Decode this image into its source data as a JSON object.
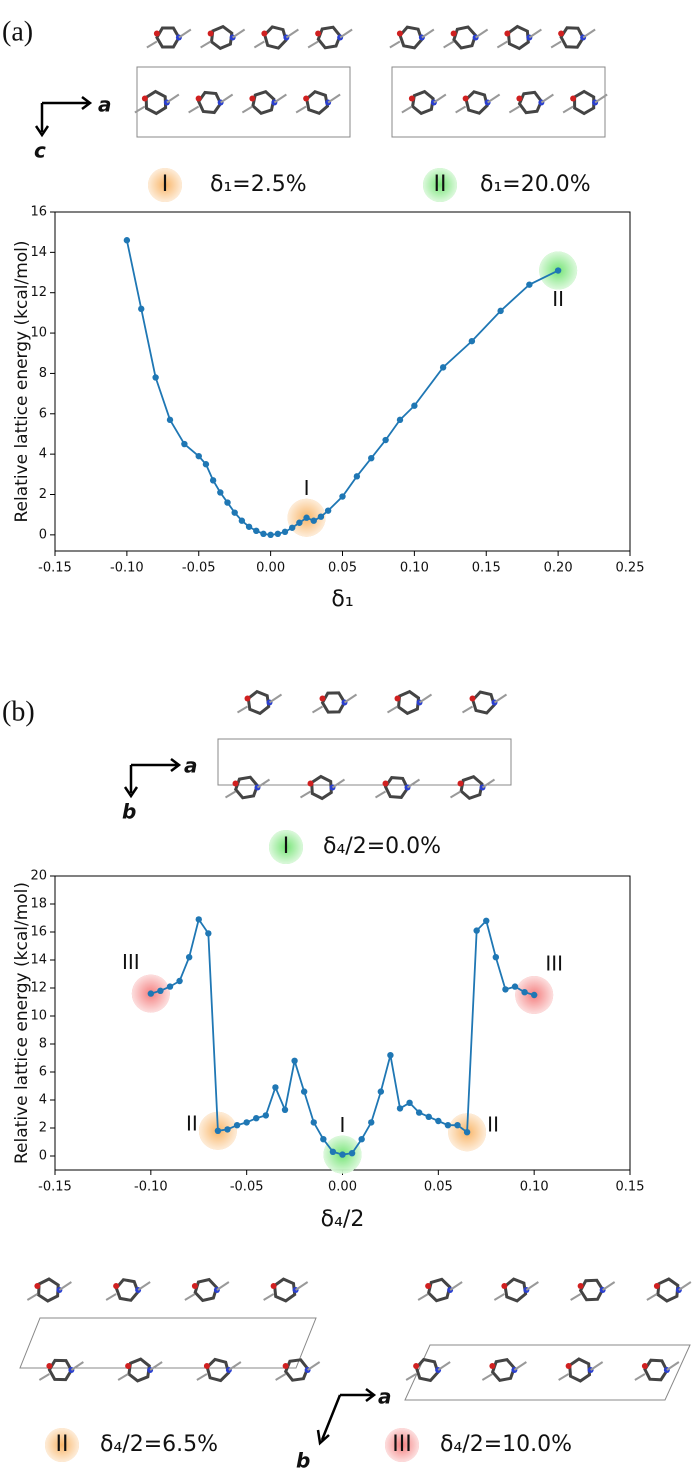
{
  "figure": {
    "panel_a": {
      "label": "(a)",
      "axes": [
        "a",
        "c"
      ],
      "structures": [
        {
          "marker": "I",
          "color": "#f8a94f",
          "caption": "δ₁=2.5%"
        },
        {
          "marker": "II",
          "color": "#5fe05f",
          "caption": "δ₁=20.0%"
        }
      ]
    },
    "panel_b": {
      "label": "(b)",
      "axes": [
        "a",
        "b"
      ],
      "structures_top": [
        {
          "marker": "I",
          "color": "#5fe05f",
          "caption": "δ₄/2=0.0%"
        }
      ],
      "structures_bottom": [
        {
          "marker": "II",
          "color": "#f8a94f",
          "caption": "δ₄/2=6.5%"
        },
        {
          "marker": "III",
          "color": "#f26a6a",
          "caption": "δ₄/2=10.0%"
        }
      ]
    }
  },
  "chart_data": [
    {
      "type": "line",
      "x_label": "δ₁",
      "y_label": "Relative lattice energy (kcal/mol)",
      "color": "#1f77b4",
      "x": [
        -0.1,
        -0.09,
        -0.08,
        -0.07,
        -0.06,
        -0.05,
        -0.045,
        -0.04,
        -0.035,
        -0.03,
        -0.025,
        -0.02,
        -0.015,
        -0.01,
        -0.005,
        0,
        0.005,
        0.01,
        0.015,
        0.02,
        0.025,
        0.03,
        0.035,
        0.04,
        0.05,
        0.06,
        0.07,
        0.08,
        0.09,
        0.1,
        0.12,
        0.14,
        0.16,
        0.18,
        0.2
      ],
      "values": [
        14.6,
        11.2,
        7.8,
        5.7,
        4.5,
        3.9,
        3.5,
        2.7,
        2.1,
        1.6,
        1.1,
        0.7,
        0.4,
        0.2,
        0.05,
        0,
        0.05,
        0.15,
        0.35,
        0.6,
        0.85,
        0.7,
        0.9,
        1.2,
        1.9,
        2.9,
        3.8,
        4.7,
        5.7,
        6.4,
        8.3,
        9.6,
        11.1,
        12.4,
        13.1
      ],
      "xlim": [
        -0.15,
        0.25
      ],
      "xticks": [
        {
          "value": -0.15,
          "label": "-0.15"
        },
        {
          "value": -0.1,
          "label": "-0.10"
        },
        {
          "value": -0.05,
          "label": "-0.05"
        },
        {
          "value": 0,
          "label": "0.00"
        },
        {
          "value": 0.05,
          "label": "0.05"
        },
        {
          "value": 0.1,
          "label": "0.10"
        },
        {
          "value": 0.15,
          "label": "0.15"
        },
        {
          "value": 0.2,
          "label": "0.20"
        },
        {
          "value": 0.25,
          "label": "0.25"
        }
      ],
      "ylim": [
        -0.8,
        16
      ],
      "yticks": [
        0,
        2,
        4,
        6,
        8,
        10,
        12,
        14,
        16
      ],
      "highlights": [
        {
          "label": "I",
          "x": 0.025,
          "y": 0.85,
          "color": "#f8a94f"
        },
        {
          "label": "II",
          "x": 0.2,
          "y": 13.1,
          "color": "#5fe05f"
        }
      ]
    },
    {
      "type": "line",
      "x_label": "δ₄/2",
      "y_label": "Relative lattice energy (kcal/mol)",
      "color": "#1f77b4",
      "x": [
        -0.1,
        -0.095,
        -0.09,
        -0.085,
        -0.08,
        -0.075,
        -0.07,
        -0.065,
        -0.06,
        -0.055,
        -0.05,
        -0.045,
        -0.04,
        -0.035,
        -0.03,
        -0.025,
        -0.02,
        -0.015,
        -0.01,
        -0.005,
        0,
        0.005,
        0.01,
        0.015,
        0.02,
        0.025,
        0.03,
        0.035,
        0.04,
        0.045,
        0.05,
        0.055,
        0.06,
        0.065,
        0.07,
        0.075,
        0.08,
        0.085,
        0.09,
        0.095,
        0.1
      ],
      "values": [
        11.6,
        11.8,
        12.1,
        12.5,
        14.2,
        16.9,
        15.9,
        1.8,
        1.9,
        2.2,
        2.4,
        2.7,
        2.9,
        4.9,
        3.3,
        6.8,
        4.6,
        2.4,
        1.2,
        0.3,
        0.1,
        0.2,
        1.2,
        2.4,
        4.6,
        7.2,
        3.4,
        3.8,
        3.1,
        2.8,
        2.5,
        2.2,
        2.2,
        1.7,
        16.1,
        16.8,
        14.2,
        11.9,
        12.1,
        11.7,
        11.5
      ],
      "xlim": [
        -0.15,
        0.15
      ],
      "xticks": [
        {
          "value": -0.15,
          "label": "-0.15"
        },
        {
          "value": -0.1,
          "label": "-0.10"
        },
        {
          "value": -0.05,
          "label": "-0.05"
        },
        {
          "value": 0,
          "label": "0.00"
        },
        {
          "value": 0.05,
          "label": "0.05"
        },
        {
          "value": 0.1,
          "label": "0.10"
        },
        {
          "value": 0.15,
          "label": "0.15"
        }
      ],
      "ylim": [
        -1,
        20
      ],
      "yticks": [
        0,
        2,
        4,
        6,
        8,
        10,
        12,
        14,
        16,
        18,
        20
      ],
      "highlights": [
        {
          "label": "III",
          "x": -0.1,
          "y": 11.6,
          "color": "#f26a6a"
        },
        {
          "label": "II",
          "x": -0.065,
          "y": 1.8,
          "color": "#f8a94f"
        },
        {
          "label": "I",
          "x": 0,
          "y": 0.1,
          "color": "#5fe05f"
        },
        {
          "label": "II",
          "x": 0.065,
          "y": 1.7,
          "color": "#f8a94f"
        },
        {
          "label": "III",
          "x": 0.1,
          "y": 11.5,
          "color": "#f26a6a"
        }
      ]
    }
  ]
}
